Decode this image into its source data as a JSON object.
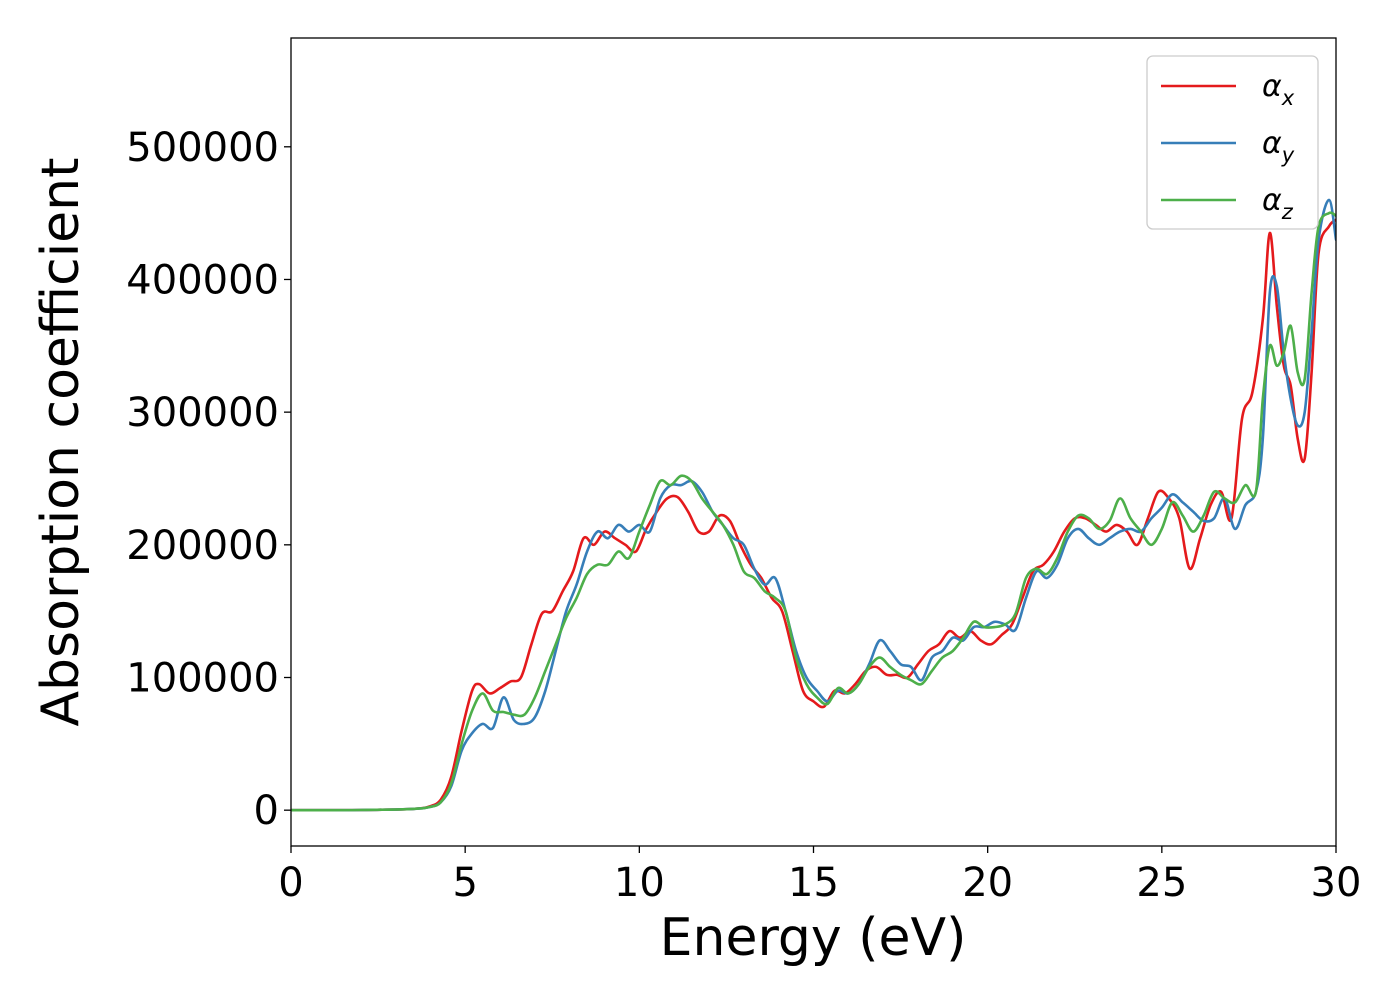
{
  "chart_data": {
    "type": "line",
    "title": "",
    "xlabel": "Energy (eV)",
    "ylabel": "Absorption coefficient",
    "xlim": [
      0,
      30
    ],
    "ylim": [
      -27000,
      582000
    ],
    "xticks": [
      "0",
      "5",
      "10",
      "15",
      "20",
      "25",
      "30"
    ],
    "yticks": [
      "0",
      "100000",
      "200000",
      "300000",
      "400000",
      "500000"
    ],
    "grid": false,
    "legend_position": "top-right",
    "series": [
      {
        "name": "αx",
        "legend_symbol": "α",
        "legend_subscript": "x",
        "color": "#e41a1c",
        "x": [
          0,
          2,
          3.5,
          4.0,
          4.3,
          4.6,
          4.9,
          5.2,
          5.4,
          5.7,
          6.0,
          6.3,
          6.6,
          6.9,
          7.2,
          7.5,
          7.8,
          8.1,
          8.4,
          8.7,
          9.0,
          9.3,
          9.6,
          9.9,
          10.2,
          10.5,
          10.8,
          11.1,
          11.4,
          11.7,
          12.0,
          12.3,
          12.6,
          12.9,
          13.2,
          13.5,
          13.8,
          14.1,
          14.4,
          14.7,
          15.0,
          15.3,
          15.6,
          15.9,
          16.2,
          16.5,
          16.8,
          17.1,
          17.4,
          17.7,
          18.0,
          18.3,
          18.6,
          18.9,
          19.2,
          19.5,
          19.8,
          20.1,
          20.4,
          20.7,
          21.0,
          21.3,
          21.6,
          21.9,
          22.2,
          22.5,
          22.8,
          23.1,
          23.4,
          23.7,
          24.0,
          24.3,
          24.6,
          24.9,
          25.2,
          25.5,
          25.8,
          26.1,
          26.4,
          26.7,
          27.0,
          27.3,
          27.6,
          27.9,
          28.1,
          28.3,
          28.5,
          28.7,
          28.9,
          29.1,
          29.3,
          29.5,
          29.8,
          30.0
        ],
        "y": [
          0,
          100,
          1000,
          3000,
          8000,
          25000,
          60000,
          90000,
          95000,
          88000,
          92000,
          97000,
          100000,
          125000,
          148000,
          150000,
          165000,
          180000,
          205000,
          200000,
          210000,
          205000,
          200000,
          195000,
          212000,
          225000,
          235000,
          236000,
          225000,
          210000,
          210000,
          222000,
          218000,
          200000,
          185000,
          175000,
          160000,
          150000,
          120000,
          90000,
          82000,
          78000,
          90000,
          88000,
          95000,
          105000,
          108000,
          102000,
          102000,
          100000,
          110000,
          120000,
          125000,
          135000,
          130000,
          135000,
          128000,
          125000,
          132000,
          140000,
          160000,
          180000,
          185000,
          195000,
          210000,
          220000,
          220000,
          215000,
          210000,
          215000,
          210000,
          200000,
          220000,
          240000,
          235000,
          220000,
          182000,
          205000,
          230000,
          240000,
          220000,
          295000,
          315000,
          370000,
          435000,
          380000,
          335000,
          320000,
          280000,
          265000,
          330000,
          420000,
          440000,
          445000
        ]
      },
      {
        "name": "αy",
        "legend_symbol": "α",
        "legend_subscript": "y",
        "color": "#377eb8",
        "x": [
          0,
          2,
          3.5,
          4.0,
          4.3,
          4.6,
          4.9,
          5.2,
          5.5,
          5.8,
          6.1,
          6.4,
          6.7,
          7.0,
          7.3,
          7.6,
          7.9,
          8.2,
          8.5,
          8.8,
          9.1,
          9.4,
          9.7,
          10.0,
          10.3,
          10.6,
          10.9,
          11.2,
          11.5,
          11.8,
          12.1,
          12.4,
          12.7,
          13.0,
          13.3,
          13.6,
          13.9,
          14.2,
          14.5,
          14.8,
          15.1,
          15.4,
          15.7,
          16.0,
          16.3,
          16.6,
          16.9,
          17.2,
          17.5,
          17.8,
          18.1,
          18.4,
          18.7,
          19.0,
          19.3,
          19.6,
          19.9,
          20.2,
          20.5,
          20.8,
          21.1,
          21.4,
          21.7,
          22.0,
          22.3,
          22.6,
          22.9,
          23.2,
          23.5,
          23.8,
          24.1,
          24.4,
          24.7,
          25.0,
          25.3,
          25.6,
          25.9,
          26.2,
          26.5,
          26.8,
          27.1,
          27.4,
          27.7,
          27.9,
          28.1,
          28.3,
          28.5,
          28.7,
          28.9,
          29.1,
          29.3,
          29.5,
          29.8,
          30.0
        ],
        "y": [
          0,
          100,
          1000,
          2500,
          6000,
          18000,
          45000,
          58000,
          65000,
          62000,
          85000,
          68000,
          65000,
          70000,
          90000,
          120000,
          150000,
          170000,
          195000,
          210000,
          205000,
          215000,
          210000,
          215000,
          210000,
          235000,
          245000,
          245000,
          248000,
          240000,
          225000,
          215000,
          205000,
          200000,
          182000,
          170000,
          175000,
          150000,
          120000,
          100000,
          90000,
          82000,
          90000,
          88000,
          95000,
          110000,
          128000,
          120000,
          110000,
          108000,
          98000,
          115000,
          120000,
          130000,
          128000,
          138000,
          138000,
          142000,
          140000,
          136000,
          160000,
          180000,
          175000,
          185000,
          205000,
          212000,
          205000,
          200000,
          205000,
          210000,
          212000,
          210000,
          220000,
          228000,
          238000,
          232000,
          225000,
          218000,
          220000,
          235000,
          212000,
          230000,
          240000,
          280000,
          390000,
          395000,
          345000,
          310000,
          290000,
          300000,
          360000,
          430000,
          460000,
          430000
        ]
      },
      {
        "name": "αz",
        "legend_symbol": "α",
        "legend_subscript": "z",
        "color": "#4daf4a",
        "x": [
          0,
          2,
          3.5,
          4.0,
          4.3,
          4.6,
          4.9,
          5.2,
          5.5,
          5.8,
          6.1,
          6.4,
          6.7,
          7.0,
          7.3,
          7.6,
          7.9,
          8.2,
          8.5,
          8.8,
          9.1,
          9.4,
          9.7,
          10.0,
          10.3,
          10.6,
          10.9,
          11.2,
          11.5,
          11.8,
          12.1,
          12.4,
          12.7,
          13.0,
          13.3,
          13.6,
          13.9,
          14.2,
          14.5,
          14.8,
          15.1,
          15.4,
          15.7,
          16.0,
          16.3,
          16.6,
          16.9,
          17.2,
          17.5,
          17.8,
          18.1,
          18.4,
          18.7,
          19.0,
          19.3,
          19.6,
          19.9,
          20.2,
          20.5,
          20.8,
          21.1,
          21.4,
          21.7,
          22.0,
          22.3,
          22.6,
          22.9,
          23.2,
          23.5,
          23.8,
          24.1,
          24.4,
          24.7,
          25.0,
          25.3,
          25.6,
          25.9,
          26.2,
          26.5,
          26.8,
          27.1,
          27.4,
          27.7,
          27.9,
          28.1,
          28.3,
          28.5,
          28.7,
          28.9,
          29.1,
          29.3,
          29.5,
          29.8,
          30.0
        ],
        "y": [
          0,
          100,
          1000,
          2500,
          6000,
          20000,
          50000,
          75000,
          88000,
          75000,
          74000,
          72000,
          72000,
          85000,
          105000,
          125000,
          145000,
          160000,
          178000,
          185000,
          185000,
          195000,
          190000,
          210000,
          230000,
          248000,
          245000,
          252000,
          248000,
          235000,
          225000,
          215000,
          200000,
          180000,
          175000,
          165000,
          160000,
          150000,
          115000,
          95000,
          85000,
          80000,
          92000,
          88000,
          95000,
          108000,
          115000,
          108000,
          102000,
          98000,
          95000,
          105000,
          115000,
          120000,
          130000,
          142000,
          138000,
          138000,
          140000,
          148000,
          175000,
          182000,
          178000,
          190000,
          210000,
          222000,
          220000,
          212000,
          218000,
          235000,
          220000,
          210000,
          200000,
          212000,
          232000,
          222000,
          210000,
          222000,
          240000,
          235000,
          232000,
          245000,
          240000,
          310000,
          350000,
          335000,
          345000,
          365000,
          330000,
          325000,
          390000,
          440000,
          450000,
          448000
        ]
      }
    ]
  }
}
